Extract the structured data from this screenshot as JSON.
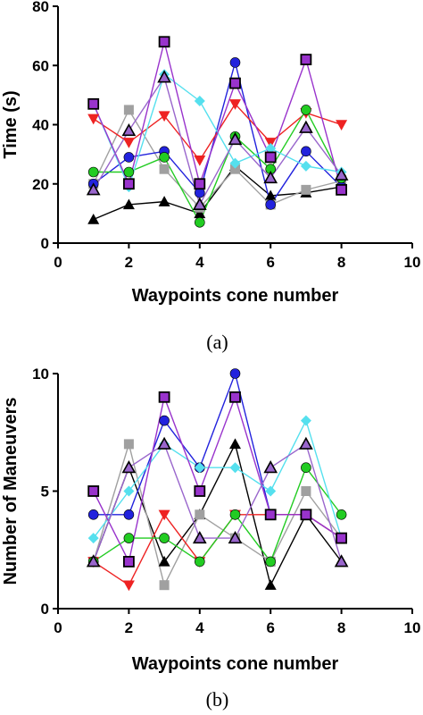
{
  "chart_data": [
    {
      "type": "line",
      "caption": "(a)",
      "xlabel": "Waypoints cone number",
      "ylabel": "Time (s)",
      "xlim": [
        0,
        10
      ],
      "ylim": [
        0,
        80
      ],
      "xticks": [
        0,
        2,
        4,
        6,
        8,
        10
      ],
      "yticks": [
        0,
        20,
        40,
        60,
        80
      ],
      "grid": false,
      "x": [
        1,
        2,
        3,
        4,
        5,
        6,
        7,
        8
      ],
      "series": [
        {
          "color": "#000000",
          "marker": "triangle-up",
          "values": [
            8,
            13,
            14,
            10,
            26,
            16,
            17,
            19
          ]
        },
        {
          "color": "#a0a0a0",
          "marker": "square",
          "values": [
            20,
            45,
            25,
            12,
            25,
            13,
            18,
            21
          ]
        },
        {
          "color": "#2222dd",
          "marker": "circle",
          "values": [
            20,
            29,
            31,
            17,
            61,
            13,
            31,
            19
          ]
        },
        {
          "color": "#ee2222",
          "marker": "triangle-down",
          "values": [
            42,
            34,
            43,
            28,
            47,
            34,
            44,
            40
          ]
        },
        {
          "color": "#22cc22",
          "marker": "circle",
          "values": [
            24,
            24,
            29,
            7,
            36,
            25,
            45,
            22
          ]
        },
        {
          "color": "#55e0ee",
          "marker": "diamond",
          "values": [
            47,
            19,
            57,
            48,
            27,
            32,
            26,
            24
          ]
        },
        {
          "color": "#9933cc",
          "marker": "square",
          "values": [
            47,
            20,
            68,
            20,
            54,
            29,
            62,
            18
          ]
        },
        {
          "color": "#9966cc",
          "marker": "triangle-up",
          "values": [
            18,
            38,
            56,
            13,
            35,
            22,
            39,
            23
          ]
        }
      ]
    },
    {
      "type": "line",
      "caption": "(b)",
      "xlabel": "Waypoints cone number",
      "ylabel": "Number of Maneuvers",
      "xlim": [
        0,
        10
      ],
      "ylim": [
        0,
        10
      ],
      "xticks": [
        0,
        2,
        4,
        6,
        8,
        10
      ],
      "yticks": [
        0,
        5,
        10
      ],
      "grid": false,
      "x": [
        1,
        2,
        3,
        4,
        5,
        6,
        7,
        8
      ],
      "series": [
        {
          "color": "#000000",
          "marker": "triangle-up",
          "values": [
            2,
            6,
            2,
            4,
            7,
            1,
            4,
            2
          ]
        },
        {
          "color": "#a0a0a0",
          "marker": "square",
          "values": [
            2,
            7,
            1,
            4,
            3,
            2,
            5,
            3
          ]
        },
        {
          "color": "#2222dd",
          "marker": "circle",
          "values": [
            4,
            4,
            8,
            6,
            10,
            4,
            4,
            3
          ]
        },
        {
          "color": "#ee2222",
          "marker": "triangle-down",
          "values": [
            2,
            1,
            4,
            2,
            4,
            4,
            4,
            3
          ]
        },
        {
          "color": "#22cc22",
          "marker": "circle",
          "values": [
            2,
            3,
            3,
            2,
            4,
            2,
            6,
            4
          ]
        },
        {
          "color": "#55e0ee",
          "marker": "diamond",
          "values": [
            3,
            5,
            7,
            6,
            6,
            5,
            8,
            3
          ]
        },
        {
          "color": "#9933cc",
          "marker": "square",
          "values": [
            5,
            2,
            9,
            5,
            9,
            4,
            4,
            3
          ]
        },
        {
          "color": "#9966cc",
          "marker": "triangle-up",
          "values": [
            2,
            6,
            7,
            3,
            3,
            6,
            7,
            2
          ]
        }
      ]
    }
  ]
}
